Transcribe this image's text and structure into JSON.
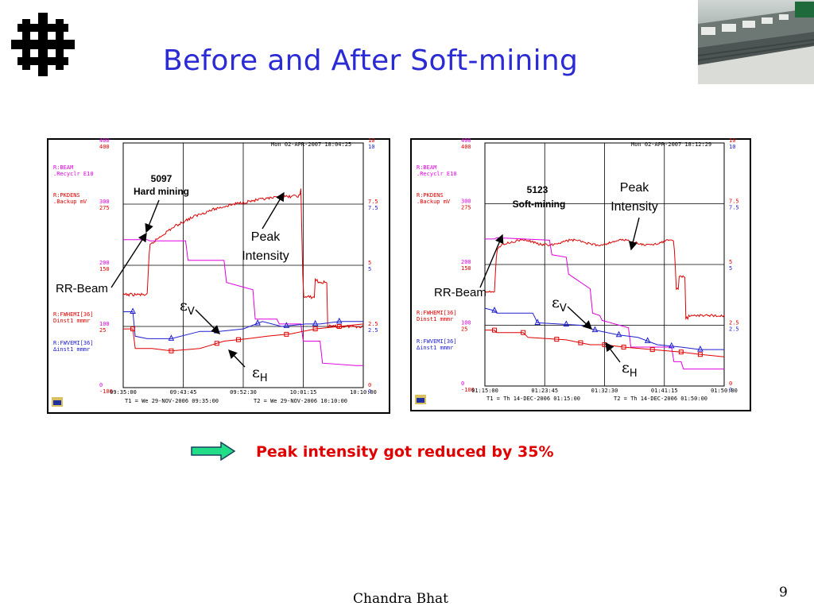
{
  "slide": {
    "title": "Before and After Soft-mining",
    "conclusion": "Peak intensity got reduced by 35%",
    "footer": "Chandra Bhat",
    "page_number": "9"
  },
  "colors": {
    "title": "#2b2bd6",
    "conclusion": "#e00000",
    "peak_trace": "#e00000",
    "beam_trace": "#e000e0",
    "ev_trace": "#2020d0",
    "eh_trace": "#e00000",
    "arrow_fill": "#22dd88"
  },
  "plots": [
    {
      "header": "Mon 02-APR-2007 18:04:25",
      "label_beam": "R:BEAM",
      "label_beam2": ".Recyclr E10",
      "label_pk": "R:PKDENS",
      "label_pk2": ".Backup mV",
      "label_fh": "R:FWHEMI[36]",
      "label_fh2": "Dinst1 mmmr",
      "label_fv": "R:FWVEMI[36]",
      "label_fv2": "∆inst1 mmmr",
      "left_ticks_a": [
        "400",
        "300",
        "200",
        "100",
        "0"
      ],
      "left_ticks_b": [
        "400",
        "275",
        "150",
        "25",
        "-100"
      ],
      "right_ticks_a": [
        "10",
        "7.5",
        "5",
        "2.5",
        "0"
      ],
      "right_ticks_b": [
        "10",
        "7.5",
        "5",
        "2.5",
        "0"
      ],
      "x_ticks": [
        "09:35:00",
        "09:43:45",
        "09:52:30",
        "10:01:15",
        "10:10:00"
      ],
      "t1": "T1 = We 29-NOV-2006 09:35:00",
      "t2": "T2 = We 29-NOV-2006 10:10:00",
      "store_id": "5097",
      "mode": "Hard mining"
    },
    {
      "header": "Mon 02-APR-2007 18:12:29",
      "label_beam": "R:BEAM",
      "label_beam2": ".Recyclr E10",
      "label_pk": "R:PKDENS",
      "label_pk2": ".Backup mV",
      "label_fh": "R:FWHEMI[36]",
      "label_fh2": "Dinst1 mmmr",
      "label_fv": "R:FWVEMI[36]",
      "label_fv2": "∆inst1 mmmr",
      "left_ticks_a": [
        "400",
        "300",
        "200",
        "100",
        "0"
      ],
      "left_ticks_b": [
        "400",
        "275",
        "150",
        "25",
        "-100"
      ],
      "right_ticks_a": [
        "10",
        "7.5",
        "5",
        "2.5",
        "0"
      ],
      "right_ticks_b": [
        "10",
        "7.5",
        "5",
        "2.5",
        "0"
      ],
      "x_ticks": [
        "01:15:00",
        "01:23:45",
        "01:32:30",
        "01:41:15",
        "01:50:00"
      ],
      "t1": "T1 = Th 14-DEC-2006 01:15:00",
      "t2": "T2 = Th 14-DEC-2006 01:50:00",
      "store_id": "5123",
      "mode": "Soft-mining"
    }
  ],
  "annotations": {
    "rr_beam": "RR-Beam",
    "peak": "Peak",
    "intensity": "Intensity",
    "epsilon": "ε",
    "v": "V",
    "h": "H"
  }
}
